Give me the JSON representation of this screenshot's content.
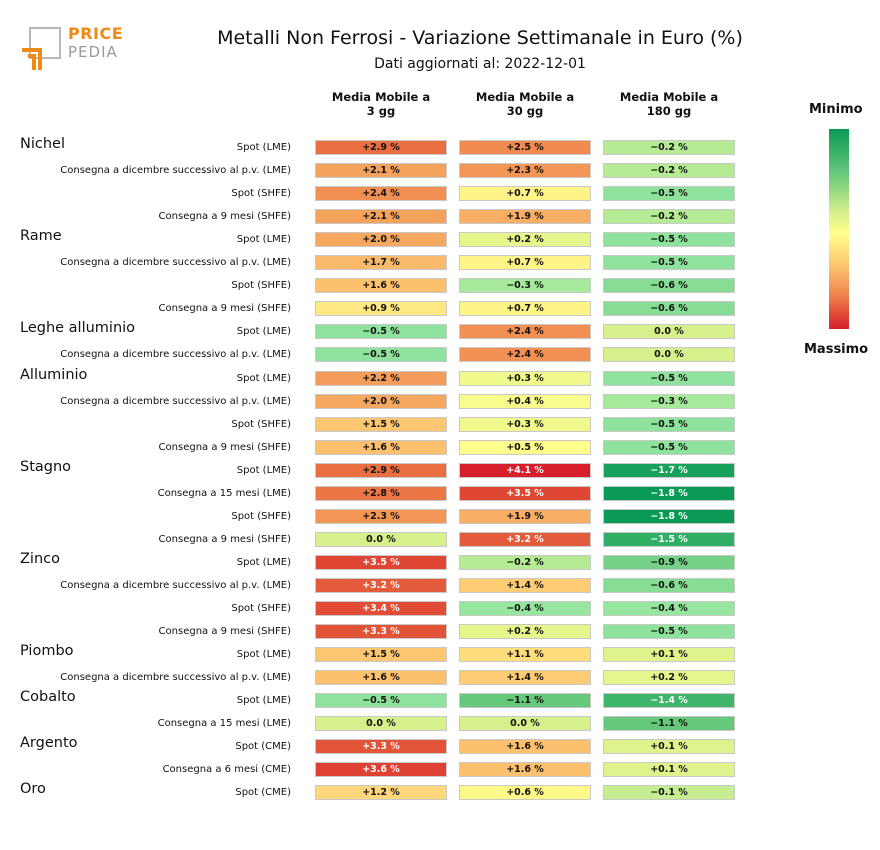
{
  "logo": {
    "word1": "PRICE",
    "word2": "PEDIA"
  },
  "title": "Metalli Non Ferrosi - Variazione Settimanale in Euro (%)",
  "subtitle": "Dati aggiornati al: 2022-12-01",
  "legend": {
    "min_label": "Minimo",
    "max_label": "Massimo",
    "min_color": "#0a9a55",
    "max_color": "#d61f2a"
  },
  "chart_data": {
    "type": "heatmap",
    "columns": [
      "Media Mobile a\n3 gg",
      "Media Mobile a\n30 gg",
      "Media Mobile a\n180 gg"
    ],
    "groups": [
      {
        "metal": "Nichel",
        "rows": [
          {
            "label": "Spot (LME)",
            "values": [
              "+2.9 %",
              "+2.5 %",
              "−0.2 %"
            ]
          },
          {
            "label": "Consegna a dicembre successivo al p.v. (LME)",
            "values": [
              "+2.1 %",
              "+2.3 %",
              "−0.2 %"
            ]
          },
          {
            "label": "Spot (SHFE)",
            "values": [
              "+2.4 %",
              "+0.7 %",
              "−0.5 %"
            ]
          },
          {
            "label": "Consegna a 9 mesi (SHFE)",
            "values": [
              "+2.1 %",
              "+1.9 %",
              "−0.2 %"
            ]
          }
        ]
      },
      {
        "metal": "Rame",
        "rows": [
          {
            "label": "Spot (LME)",
            "values": [
              "+2.0 %",
              "+0.2 %",
              "−0.5 %"
            ]
          },
          {
            "label": "Consegna a dicembre successivo al p.v. (LME)",
            "values": [
              "+1.7 %",
              "+0.7 %",
              "−0.5 %"
            ]
          },
          {
            "label": "Spot (SHFE)",
            "values": [
              "+1.6 %",
              "−0.3 %",
              "−0.6 %"
            ]
          },
          {
            "label": "Consegna a 9 mesi (SHFE)",
            "values": [
              "+0.9 %",
              "+0.7 %",
              "−0.6 %"
            ]
          }
        ]
      },
      {
        "metal": "Leghe alluminio",
        "rows": [
          {
            "label": "Spot (LME)",
            "values": [
              "−0.5 %",
              "+2.4 %",
              "0.0 %"
            ]
          },
          {
            "label": "Consegna a dicembre successivo al p.v. (LME)",
            "values": [
              "−0.5 %",
              "+2.4 %",
              "0.0 %"
            ]
          }
        ]
      },
      {
        "metal": "Alluminio",
        "rows": [
          {
            "label": "Spot (LME)",
            "values": [
              "+2.2 %",
              "+0.3 %",
              "−0.5 %"
            ]
          },
          {
            "label": "Consegna a dicembre successivo al p.v. (LME)",
            "values": [
              "+2.0 %",
              "+0.4 %",
              "−0.3 %"
            ]
          },
          {
            "label": "Spot (SHFE)",
            "values": [
              "+1.5 %",
              "+0.3 %",
              "−0.5 %"
            ]
          },
          {
            "label": "Consegna a 9 mesi (SHFE)",
            "values": [
              "+1.6 %",
              "+0.5 %",
              "−0.5 %"
            ]
          }
        ]
      },
      {
        "metal": "Stagno",
        "rows": [
          {
            "label": "Spot (LME)",
            "values": [
              "+2.9 %",
              "+4.1 %",
              "−1.7 %"
            ]
          },
          {
            "label": "Consegna a 15 mesi (LME)",
            "values": [
              "+2.8 %",
              "+3.5 %",
              "−1.8 %"
            ]
          },
          {
            "label": "Spot (SHFE)",
            "values": [
              "+2.3 %",
              "+1.9 %",
              "−1.8 %"
            ]
          },
          {
            "label": "Consegna a 9 mesi (SHFE)",
            "values": [
              "0.0 %",
              "+3.2 %",
              "−1.5 %"
            ]
          }
        ]
      },
      {
        "metal": "Zinco",
        "rows": [
          {
            "label": "Spot (LME)",
            "values": [
              "+3.5 %",
              "−0.2 %",
              "−0.9 %"
            ]
          },
          {
            "label": "Consegna a dicembre successivo al p.v. (LME)",
            "values": [
              "+3.2 %",
              "+1.4 %",
              "−0.6 %"
            ]
          },
          {
            "label": "Spot (SHFE)",
            "values": [
              "+3.4 %",
              "−0.4 %",
              "−0.4 %"
            ]
          },
          {
            "label": "Consegna a 9 mesi (SHFE)",
            "values": [
              "+3.3 %",
              "+0.2 %",
              "−0.5 %"
            ]
          }
        ]
      },
      {
        "metal": "Piombo",
        "rows": [
          {
            "label": "Spot (LME)",
            "values": [
              "+1.5 %",
              "+1.1 %",
              "+0.1 %"
            ]
          },
          {
            "label": "Consegna a dicembre successivo al p.v. (LME)",
            "values": [
              "+1.6 %",
              "+1.4 %",
              "+0.2 %"
            ]
          }
        ]
      },
      {
        "metal": "Cobalto",
        "rows": [
          {
            "label": "Spot (LME)",
            "values": [
              "−0.5 %",
              "−1.1 %",
              "−1.4 %"
            ]
          },
          {
            "label": "Consegna a 15 mesi (LME)",
            "values": [
              "0.0 %",
              "0.0 %",
              "−1.1 %"
            ]
          }
        ]
      },
      {
        "metal": "Argento",
        "rows": [
          {
            "label": "Spot (CME)",
            "values": [
              "+3.3 %",
              "+1.6 %",
              "+0.1 %"
            ]
          },
          {
            "label": "Consegna a 6 mesi (CME)",
            "values": [
              "+3.6 %",
              "+1.6 %",
              "+0.1 %"
            ]
          }
        ]
      },
      {
        "metal": "Oro",
        "rows": [
          {
            "label": "Spot (CME)",
            "values": [
              "+1.2 %",
              "+0.6 %",
              "−0.1 %"
            ]
          }
        ]
      }
    ]
  }
}
